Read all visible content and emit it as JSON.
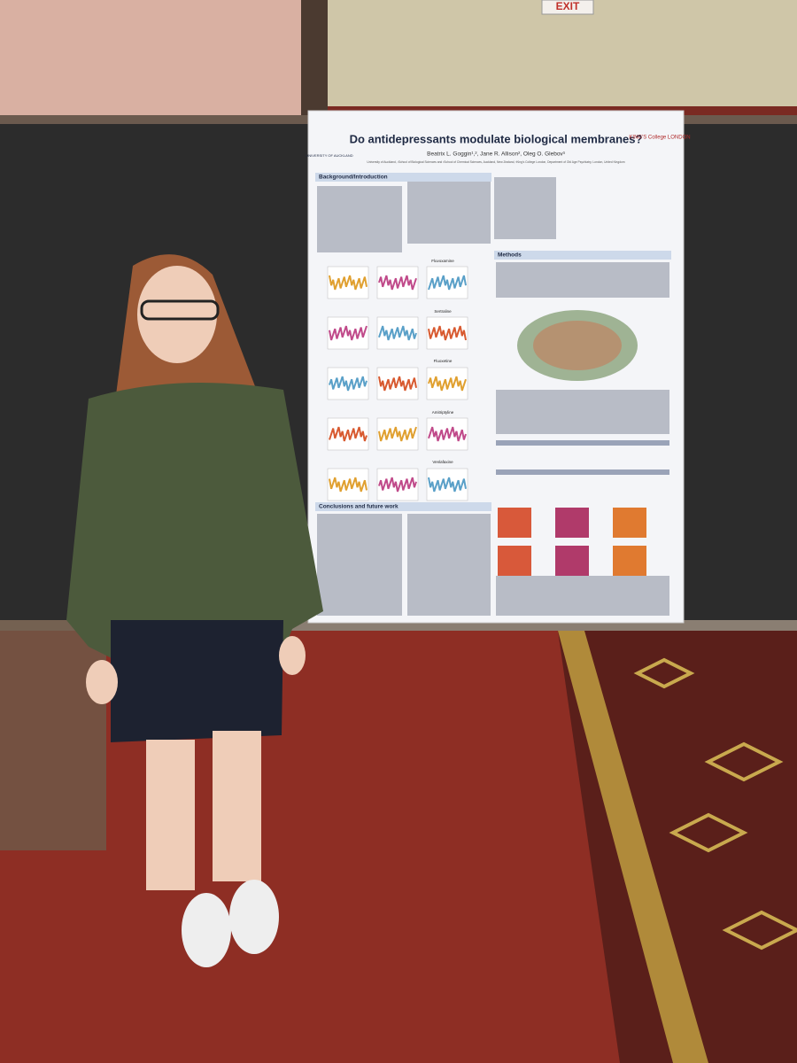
{
  "sign": {
    "exit": "EXIT"
  },
  "poster": {
    "title": "Do antidepressants modulate biological membranes?",
    "authors": "Beatrix L. Goggin¹,², Jane R. Allison², Oleg O. Glebov³",
    "affiliations": "University of Auckland, ¹School of Biological Sciences and ²School of Chemical Sciences, Auckland, New Zealand, ³King's College London, Department of Old Age Psychiatry, London, United Kingdom",
    "logos": [
      "UNIVERSITY OF AUCKLAND",
      "KING'S College LONDON"
    ],
    "sections": [
      "Background/Introduction",
      "Methods",
      "Conclusions and future work"
    ],
    "panels": [
      "Fluvoxamine",
      "Sertraline",
      "Fluoxetine",
      "Amitriptyline",
      "Venlafaxine"
    ]
  }
}
